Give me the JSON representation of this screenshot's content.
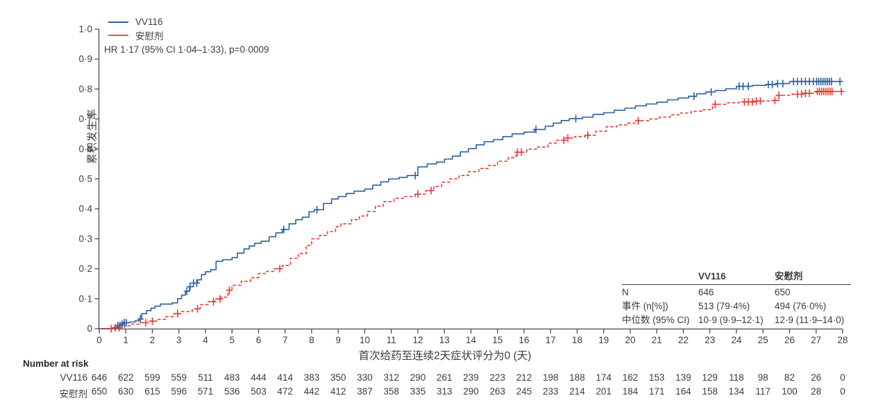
{
  "figure_meta": {
    "annotation": "HR 1·17 (95% CI 1·04–1·33), p=0·0009",
    "colors": {
      "vv116": "#2b5f9e",
      "placebo": "#e23b32",
      "axis": "#4a4a4a",
      "text": "#3c3c3c"
    }
  },
  "legend": [
    {
      "label": "VV116",
      "color": "#2b5f9e",
      "style": "solid"
    },
    {
      "label": "安慰剂",
      "color": "#e2564d",
      "style": "solid"
    }
  ],
  "chart_data": {
    "type": "line",
    "subtype": "kaplan-meier-cumulative-incidence-step",
    "title": "",
    "xlabel": "首次给药至连续2天症状评分为0 (天)",
    "ylabel": "累积发生率",
    "xlim": [
      0,
      28
    ],
    "ylim": [
      0,
      1.0
    ],
    "grid": false,
    "legend_position": "top-left-inside",
    "xticks": [
      0,
      1,
      2,
      3,
      4,
      5,
      6,
      7,
      8,
      9,
      10,
      11,
      12,
      13,
      14,
      15,
      16,
      17,
      18,
      19,
      20,
      21,
      22,
      23,
      24,
      25,
      26,
      27,
      28
    ],
    "ytick_labels": [
      "0",
      "0·1",
      "0·2",
      "0·3",
      "0·4",
      "0·5",
      "0·6",
      "0·7",
      "0·8",
      "0·9",
      "1·0"
    ],
    "series": [
      {
        "name": "VV116",
        "color": "#2b5f9e",
        "line": "solid",
        "points": [
          [
            0,
            0
          ],
          [
            0.55,
            0.005
          ],
          [
            0.7,
            0.01
          ],
          [
            0.8,
            0.015
          ],
          [
            0.9,
            0.02
          ],
          [
            1.15,
            0.022
          ],
          [
            1.35,
            0.026
          ],
          [
            1.5,
            0.032
          ],
          [
            1.6,
            0.05
          ],
          [
            1.78,
            0.06
          ],
          [
            1.95,
            0.068
          ],
          [
            2.1,
            0.075
          ],
          [
            2.3,
            0.082
          ],
          [
            2.75,
            0.086
          ],
          [
            2.95,
            0.1
          ],
          [
            3.1,
            0.112
          ],
          [
            3.25,
            0.125
          ],
          [
            3.4,
            0.14
          ],
          [
            3.55,
            0.152
          ],
          [
            3.7,
            0.163
          ],
          [
            3.85,
            0.18
          ],
          [
            4.0,
            0.19
          ],
          [
            4.2,
            0.197
          ],
          [
            4.4,
            0.225
          ],
          [
            4.65,
            0.23
          ],
          [
            5.0,
            0.237
          ],
          [
            5.2,
            0.252
          ],
          [
            5.45,
            0.266
          ],
          [
            5.65,
            0.276
          ],
          [
            5.85,
            0.285
          ],
          [
            6.1,
            0.292
          ],
          [
            6.4,
            0.307
          ],
          [
            6.65,
            0.32
          ],
          [
            6.9,
            0.331
          ],
          [
            7.15,
            0.35
          ],
          [
            7.4,
            0.364
          ],
          [
            7.65,
            0.372
          ],
          [
            7.9,
            0.39
          ],
          [
            8.1,
            0.397
          ],
          [
            8.45,
            0.418
          ],
          [
            8.75,
            0.433
          ],
          [
            9.0,
            0.441
          ],
          [
            9.3,
            0.451
          ],
          [
            9.6,
            0.459
          ],
          [
            10.0,
            0.466
          ],
          [
            10.3,
            0.479
          ],
          [
            10.6,
            0.49
          ],
          [
            10.9,
            0.5
          ],
          [
            11.3,
            0.505
          ],
          [
            11.6,
            0.511
          ],
          [
            12.0,
            0.54
          ],
          [
            12.35,
            0.55
          ],
          [
            12.7,
            0.556
          ],
          [
            13.0,
            0.566
          ],
          [
            13.3,
            0.576
          ],
          [
            13.6,
            0.59
          ],
          [
            13.9,
            0.601
          ],
          [
            14.2,
            0.614
          ],
          [
            14.5,
            0.624
          ],
          [
            14.85,
            0.631
          ],
          [
            15.2,
            0.641
          ],
          [
            15.55,
            0.65
          ],
          [
            16.0,
            0.656
          ],
          [
            16.4,
            0.665
          ],
          [
            16.8,
            0.676
          ],
          [
            17.1,
            0.686
          ],
          [
            17.4,
            0.695
          ],
          [
            17.7,
            0.701
          ],
          [
            18.2,
            0.706
          ],
          [
            18.6,
            0.715
          ],
          [
            19.0,
            0.721
          ],
          [
            19.4,
            0.729
          ],
          [
            19.8,
            0.736
          ],
          [
            20.2,
            0.744
          ],
          [
            20.6,
            0.75
          ],
          [
            21.0,
            0.756
          ],
          [
            21.4,
            0.764
          ],
          [
            21.8,
            0.77
          ],
          [
            22.2,
            0.776
          ],
          [
            22.5,
            0.784
          ],
          [
            22.85,
            0.79
          ],
          [
            23.2,
            0.795
          ],
          [
            23.6,
            0.801
          ],
          [
            24.0,
            0.809
          ],
          [
            24.6,
            0.812
          ],
          [
            25.1,
            0.815
          ],
          [
            25.5,
            0.818
          ],
          [
            26.0,
            0.825
          ],
          [
            28,
            0.825
          ]
        ],
        "censor_days": [
          0.7,
          0.78,
          0.86,
          0.94,
          1.02,
          1.55,
          3.3,
          3.42,
          3.55,
          3.67,
          6.95,
          8.2,
          11.9,
          16.45,
          17.95,
          22.4,
          23.05,
          24.1,
          24.25,
          24.45,
          25.2,
          25.35,
          25.55,
          25.75,
          26.15,
          26.3,
          26.45,
          26.6,
          26.75,
          26.9,
          27.02,
          27.1,
          27.18,
          27.26,
          27.34,
          27.42,
          27.5,
          27.58,
          27.9
        ]
      },
      {
        "name": "安慰剂",
        "color": "#e23b32",
        "line": "dashed",
        "points": [
          [
            0,
            0
          ],
          [
            0.6,
            0.003
          ],
          [
            0.95,
            0.01
          ],
          [
            1.2,
            0.015
          ],
          [
            1.5,
            0.02
          ],
          [
            1.9,
            0.025
          ],
          [
            2.2,
            0.031
          ],
          [
            2.5,
            0.04
          ],
          [
            2.8,
            0.05
          ],
          [
            3.1,
            0.057
          ],
          [
            3.5,
            0.066
          ],
          [
            3.8,
            0.08
          ],
          [
            4.1,
            0.09
          ],
          [
            4.35,
            0.099
          ],
          [
            4.6,
            0.105
          ],
          [
            4.85,
            0.128
          ],
          [
            5.0,
            0.145
          ],
          [
            5.35,
            0.158
          ],
          [
            5.7,
            0.17
          ],
          [
            6.0,
            0.184
          ],
          [
            6.3,
            0.191
          ],
          [
            6.6,
            0.2
          ],
          [
            6.9,
            0.211
          ],
          [
            7.2,
            0.235
          ],
          [
            7.5,
            0.251
          ],
          [
            7.8,
            0.278
          ],
          [
            8.0,
            0.3
          ],
          [
            8.3,
            0.311
          ],
          [
            8.6,
            0.324
          ],
          [
            8.9,
            0.34
          ],
          [
            9.1,
            0.35
          ],
          [
            9.5,
            0.364
          ],
          [
            9.8,
            0.376
          ],
          [
            10.1,
            0.391
          ],
          [
            10.4,
            0.409
          ],
          [
            10.7,
            0.424
          ],
          [
            11.1,
            0.435
          ],
          [
            11.5,
            0.441
          ],
          [
            11.9,
            0.449
          ],
          [
            12.3,
            0.461
          ],
          [
            12.6,
            0.475
          ],
          [
            12.9,
            0.489
          ],
          [
            13.2,
            0.5
          ],
          [
            13.55,
            0.511
          ],
          [
            13.9,
            0.524
          ],
          [
            14.3,
            0.535
          ],
          [
            14.65,
            0.545
          ],
          [
            15.0,
            0.559
          ],
          [
            15.4,
            0.571
          ],
          [
            15.7,
            0.589
          ],
          [
            16.1,
            0.599
          ],
          [
            16.5,
            0.606
          ],
          [
            16.9,
            0.619
          ],
          [
            17.2,
            0.629
          ],
          [
            17.55,
            0.636
          ],
          [
            17.9,
            0.641
          ],
          [
            18.3,
            0.646
          ],
          [
            18.7,
            0.659
          ],
          [
            19.1,
            0.674
          ],
          [
            19.5,
            0.68
          ],
          [
            19.9,
            0.686
          ],
          [
            20.3,
            0.694
          ],
          [
            20.7,
            0.7
          ],
          [
            21.1,
            0.706
          ],
          [
            21.5,
            0.714
          ],
          [
            21.9,
            0.72
          ],
          [
            22.3,
            0.726
          ],
          [
            22.7,
            0.731
          ],
          [
            23.1,
            0.749
          ],
          [
            23.6,
            0.754
          ],
          [
            24.1,
            0.757
          ],
          [
            24.7,
            0.76
          ],
          [
            25.3,
            0.762
          ],
          [
            25.6,
            0.779
          ],
          [
            26.1,
            0.783
          ],
          [
            26.6,
            0.786
          ],
          [
            27.0,
            0.792
          ],
          [
            28,
            0.792
          ]
        ],
        "censor_days": [
          0.45,
          0.6,
          0.75,
          1.75,
          2.0,
          2.95,
          3.7,
          4.3,
          4.55,
          4.9,
          6.8,
          12.0,
          12.5,
          15.75,
          15.9,
          17.5,
          17.65,
          18.4,
          20.3,
          23.2,
          24.3,
          24.45,
          24.6,
          24.75,
          24.9,
          25.45,
          25.6,
          26.3,
          26.45,
          26.6,
          26.75,
          27.05,
          27.13,
          27.21,
          27.29,
          27.37,
          27.45,
          27.53,
          27.6,
          27.95
        ]
      }
    ]
  },
  "stats_table": {
    "col_headers": [
      "VV116",
      "安慰剂"
    ],
    "rows": [
      {
        "label": "N",
        "vv116": "646",
        "placebo": "650"
      },
      {
        "label": "事件 (n[%])",
        "vv116": "513 (79·4%)",
        "placebo": "494 (76·0%)"
      },
      {
        "label": "中位数 (95% CI)",
        "vv116": "10·9 (9·9–12·1)",
        "placebo": "12·9 (11·9–14·0)"
      }
    ]
  },
  "number_at_risk": {
    "title": "Number at risk",
    "rows": [
      {
        "label": "VV116",
        "counts": [
          646,
          622,
          599,
          559,
          511,
          483,
          444,
          414,
          383,
          350,
          330,
          312,
          290,
          261,
          239,
          223,
          212,
          198,
          188,
          174,
          162,
          153,
          139,
          129,
          118,
          98,
          82,
          26,
          0
        ]
      },
      {
        "label": "安慰剂",
        "counts": [
          650,
          630,
          615,
          596,
          571,
          536,
          503,
          472,
          442,
          412,
          387,
          358,
          335,
          313,
          290,
          263,
          245,
          233,
          214,
          201,
          184,
          171,
          164,
          158,
          134,
          117,
          100,
          28,
          0
        ]
      }
    ]
  }
}
